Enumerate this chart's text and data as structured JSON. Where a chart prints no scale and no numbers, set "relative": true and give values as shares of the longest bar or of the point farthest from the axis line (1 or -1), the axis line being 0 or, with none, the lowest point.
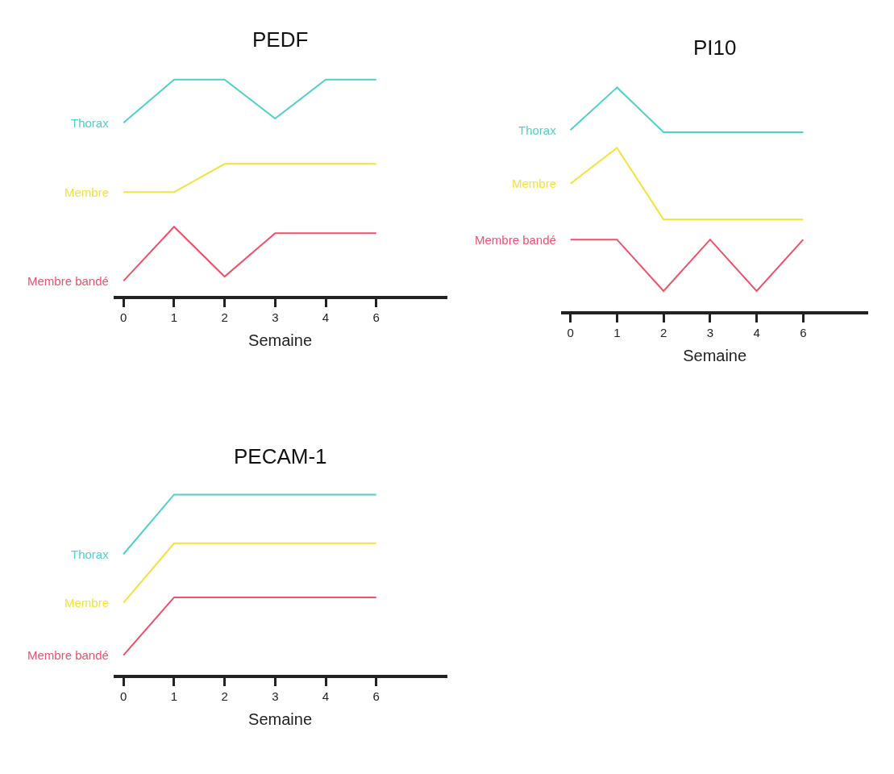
{
  "chart_data": [
    {
      "type": "line",
      "title": "PEDF",
      "xlabel": "Semaine",
      "categories": [
        "0",
        "1",
        "2",
        "3",
        "4",
        "6"
      ],
      "relative": true,
      "tick_labels": "x",
      "series": [
        {
          "name": "Thorax",
          "color": "#4fd0c8",
          "values": [
            0.8,
            1.0,
            1.0,
            0.82,
            1.0,
            1.0
          ]
        },
        {
          "name": "Membre",
          "color": "#f2e23c",
          "values": [
            0.48,
            0.48,
            0.61,
            0.61,
            0.61,
            0.61
          ]
        },
        {
          "name": "Membre bandé",
          "color": "#f0506a",
          "values": [
            0.07,
            0.32,
            0.09,
            0.29,
            0.29,
            0.29
          ]
        }
      ]
    },
    {
      "type": "line",
      "title": "PI10",
      "xlabel": "Semaine",
      "categories": [
        "0",
        "1",
        "2",
        "3",
        "4",
        "6"
      ],
      "relative": true,
      "tick_labels": "x",
      "series": [
        {
          "name": "Thorax",
          "color": "#4fd0c8",
          "values": [
            0.81,
            1.0,
            0.8,
            0.8,
            0.8,
            0.8
          ]
        },
        {
          "name": "Membre",
          "color": "#f2e23c",
          "values": [
            0.57,
            0.73,
            0.41,
            0.41,
            0.41,
            0.41
          ]
        },
        {
          "name": "Membre bandé",
          "color": "#f0506a",
          "values": [
            0.32,
            0.32,
            0.09,
            0.32,
            0.09,
            0.32
          ]
        }
      ]
    },
    {
      "type": "line",
      "title": "PECAM-1",
      "xlabel": "Semaine",
      "categories": [
        "0",
        "1",
        "2",
        "3",
        "4",
        "6"
      ],
      "relative": true,
      "tick_labels": "x",
      "series": [
        {
          "name": "Thorax",
          "color": "#4fd0c8",
          "values": [
            0.67,
            1.0,
            1.0,
            1.0,
            1.0,
            1.0
          ]
        },
        {
          "name": "Membre",
          "color": "#f2e23c",
          "values": [
            0.4,
            0.73,
            0.73,
            0.73,
            0.73,
            0.73
          ]
        },
        {
          "name": "Membre bandé",
          "color": "#f0506a",
          "values": [
            0.11,
            0.43,
            0.43,
            0.43,
            0.43,
            0.43
          ]
        }
      ]
    }
  ]
}
